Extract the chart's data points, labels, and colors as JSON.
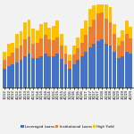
{
  "categories": [
    "1Q12",
    "2Q12",
    "3Q12",
    "4Q12",
    "1Q13",
    "2Q13",
    "3Q13",
    "4Q13",
    "1Q14",
    "2Q14",
    "3Q14",
    "4Q14",
    "1Q15",
    "2Q15",
    "3Q15",
    "4Q15",
    "1Q16",
    "2Q16",
    "3Q16",
    "4Q16",
    "1Q17",
    "2Q17",
    "3Q17",
    "4Q17",
    "1Q18",
    "2Q18",
    "3Q18",
    "4Q18",
    "1Q19",
    "2Q19",
    "3Q19",
    "4Q19"
  ],
  "leveraged_loans": [
    18,
    20,
    22,
    24,
    26,
    30,
    32,
    28,
    28,
    30,
    32,
    30,
    30,
    32,
    27,
    22,
    18,
    22,
    26,
    30,
    34,
    38,
    42,
    44,
    46,
    42,
    40,
    34,
    28,
    30,
    34,
    32
  ],
  "institutional_loans": [
    8,
    10,
    11,
    13,
    14,
    16,
    17,
    14,
    15,
    17,
    18,
    16,
    15,
    16,
    13,
    10,
    7,
    9,
    11,
    13,
    16,
    20,
    23,
    27,
    26,
    24,
    22,
    17,
    12,
    14,
    17,
    15
  ],
  "high_yield": [
    8,
    12,
    10,
    14,
    14,
    16,
    16,
    14,
    12,
    14,
    12,
    11,
    14,
    16,
    11,
    8,
    6,
    9,
    11,
    13,
    14,
    17,
    14,
    18,
    16,
    18,
    15,
    10,
    8,
    11,
    13,
    11
  ],
  "color_leveraged": "#4472C4",
  "color_institutional": "#ED7D31",
  "color_high_yield": "#FFC000",
  "background_color": "#F2F2F2",
  "label_leveraged": "Leveraged Loans",
  "label_institutional": "Institutional Loans",
  "label_high_yield": "High Yield"
}
